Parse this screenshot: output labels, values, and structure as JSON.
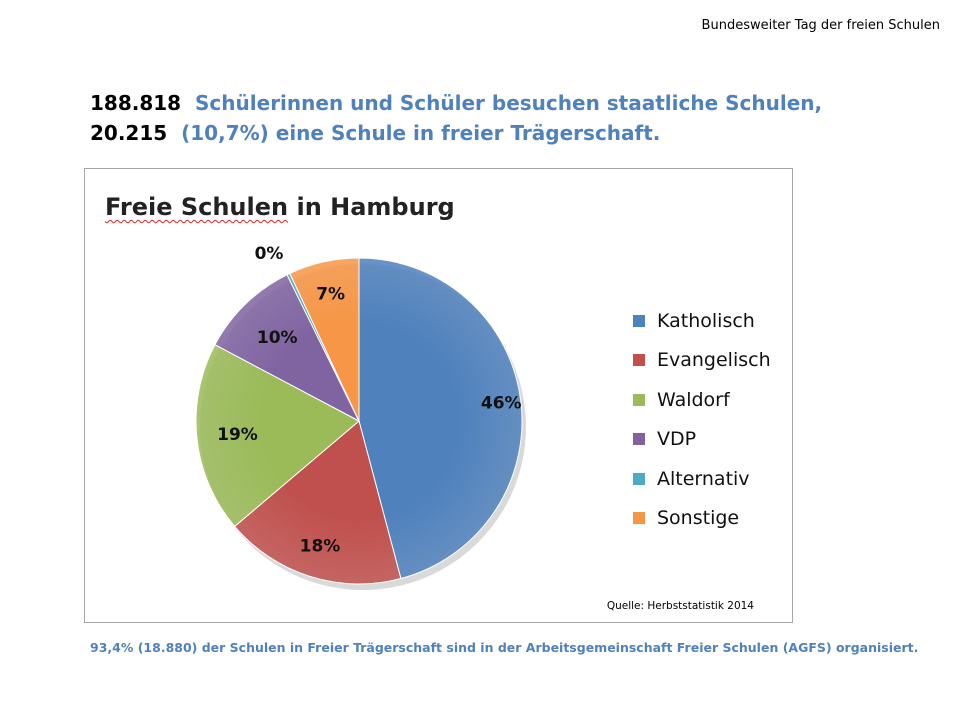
{
  "header": {
    "top_right": "Bundesweiter Tag der freien Schulen",
    "line1_num": "188.818",
    "line1_text": "Schülerinnen und Schüler besuchen staatliche Schulen,",
    "line2_num": "20.215",
    "line2_text": "(10,7%) eine Schule in freier Trägerschaft."
  },
  "chart_data": {
    "type": "pie",
    "title_part1": "Freie Schulen",
    "title_part2": "in Hamburg",
    "source": "Quelle: Herbststatistik 2014",
    "legend_position": "right",
    "slices": [
      {
        "name": "Katholisch",
        "value": 46,
        "label": "46%",
        "color": "#4f81bd"
      },
      {
        "name": "Evangelisch",
        "value": 18,
        "label": "18%",
        "color": "#c0504d"
      },
      {
        "name": "Waldorf",
        "value": 19,
        "label": "19%",
        "color": "#9bbb59"
      },
      {
        "name": "VDP",
        "value": 10,
        "label": "10%",
        "color": "#8064a2"
      },
      {
        "name": "Alternativ",
        "value": 0.3,
        "label": "0%",
        "color": "#4bacc6"
      },
      {
        "name": "Sonstige",
        "value": 7,
        "label": "7%",
        "color": "#f79646"
      }
    ]
  },
  "footer": {
    "text": "93,4% (18.880)  der Schulen in Freier Trägerschaft sind in der Arbeitsgemeinschaft Freier Schulen (AGFS) organisiert."
  }
}
